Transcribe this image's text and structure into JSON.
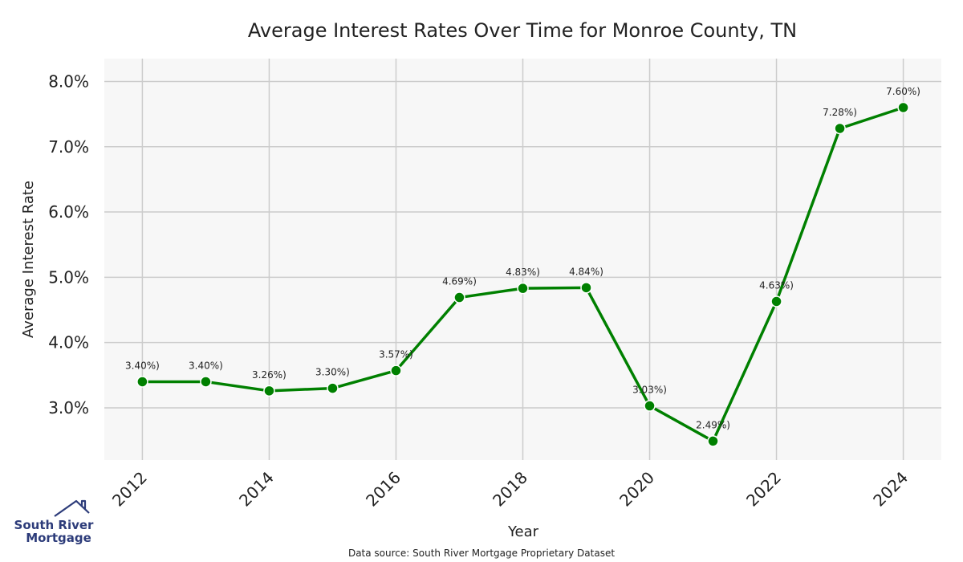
{
  "chart_data": {
    "type": "line",
    "title": "Average Interest Rates Over Time for Monroe County, TN",
    "xlabel": "Year",
    "ylabel": "Average Interest Rate",
    "x": [
      2012,
      2013,
      2014,
      2015,
      2016,
      2017,
      2018,
      2019,
      2020,
      2021,
      2022,
      2023,
      2024
    ],
    "series": [
      {
        "values": [
          3.4,
          3.4,
          3.26,
          3.3,
          3.57,
          4.69,
          4.83,
          4.84,
          3.03,
          2.49,
          4.63,
          7.28,
          7.6
        ],
        "point_labels": [
          "3.40%)",
          "3.40%)",
          "3.26%)",
          "3.30%)",
          "3.57%)",
          "4.69%)",
          "4.83%)",
          "4.84%)",
          "3.03%)",
          "2.49%)",
          "4.63%)",
          "7.28%)",
          "7.60%)"
        ],
        "color": "#008000"
      }
    ],
    "x_ticks": [
      "2012",
      "2014",
      "2016",
      "2018",
      "2020",
      "2022",
      "2024"
    ],
    "y_ticks": [
      "3.0%",
      "4.0%",
      "5.0%",
      "6.0%",
      "7.0%",
      "8.0%"
    ],
    "xlim": [
      2011.4,
      2024.6
    ],
    "ylim": [
      2.2,
      8.35
    ],
    "grid": true,
    "legend": "none"
  },
  "footer": {
    "source": "Data source: South River Mortgage Proprietary Dataset"
  },
  "logo": {
    "line1": "South River",
    "line2": "Mortgage"
  },
  "colors": {
    "line": "#008000",
    "plot_background": "#f7f7f7",
    "grid": "#cccccc",
    "logo": "#2d3c7a"
  }
}
